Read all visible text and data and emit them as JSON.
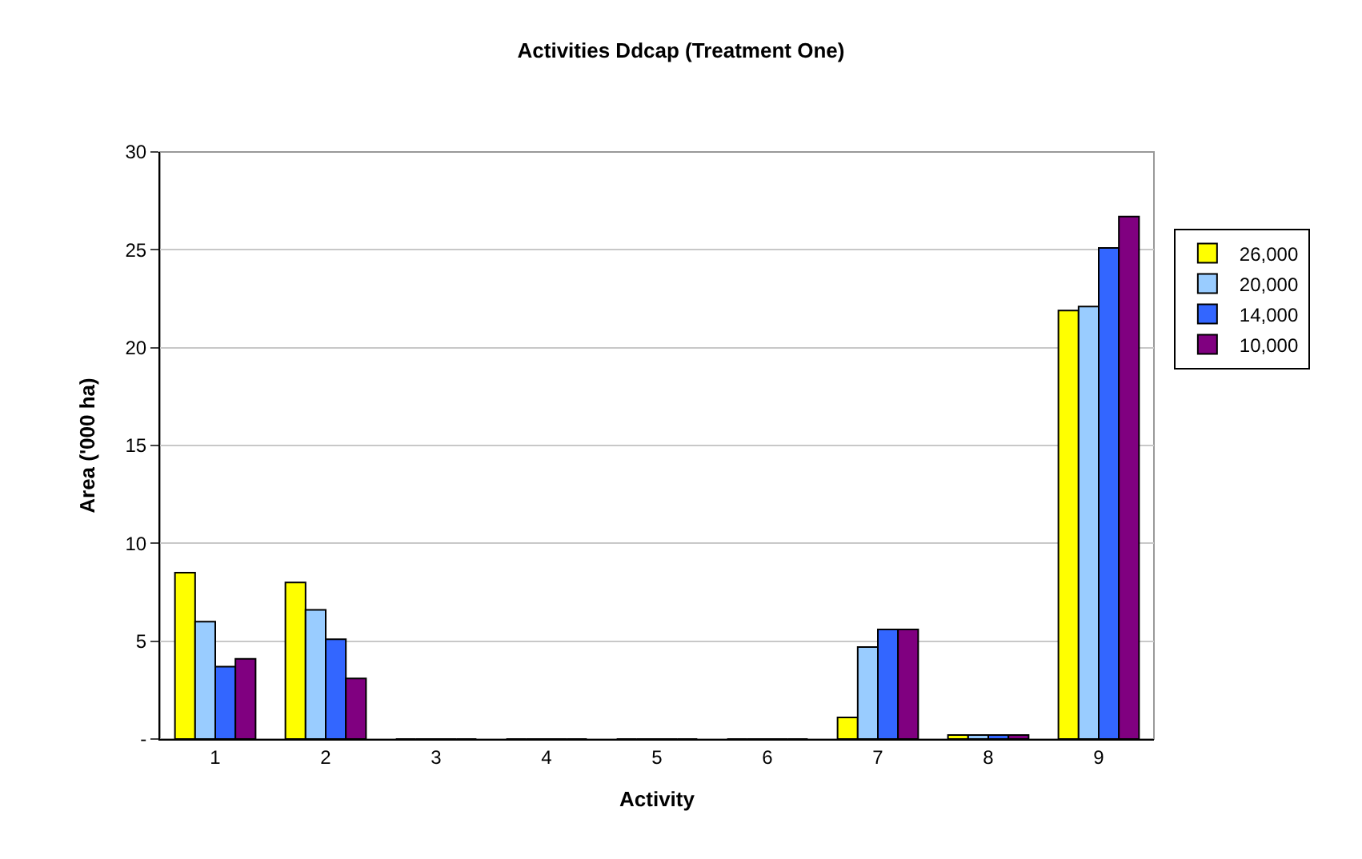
{
  "chart_data": {
    "type": "bar",
    "title": "Activities Ddcap (Treatment One)",
    "xlabel": "Activity",
    "ylabel": "Area ('000 ha)",
    "categories": [
      "1",
      "2",
      "3",
      "4",
      "5",
      "6",
      "7",
      "8",
      "9"
    ],
    "series": [
      {
        "name": "26,000",
        "color": "#ffff00",
        "values": [
          8.5,
          8.0,
          0,
          0,
          0,
          0,
          1.1,
          0.2,
          21.9
        ]
      },
      {
        "name": "20,000",
        "color": "#99ccff",
        "values": [
          6.0,
          6.6,
          0,
          0,
          0,
          0,
          4.7,
          0.2,
          22.1
        ]
      },
      {
        "name": "14,000",
        "color": "#3366ff",
        "values": [
          3.7,
          5.1,
          0,
          0,
          0,
          0,
          5.6,
          0.2,
          25.1
        ]
      },
      {
        "name": "10,000",
        "color": "#800080",
        "values": [
          4.1,
          3.1,
          0,
          0,
          0,
          0,
          5.6,
          0.2,
          26.7
        ]
      }
    ],
    "ylim": [
      0,
      30
    ],
    "yticks": [
      {
        "value": 0,
        "label": "-"
      },
      5,
      10,
      15,
      20,
      25,
      30
    ],
    "grid": "y",
    "legend": "right"
  }
}
